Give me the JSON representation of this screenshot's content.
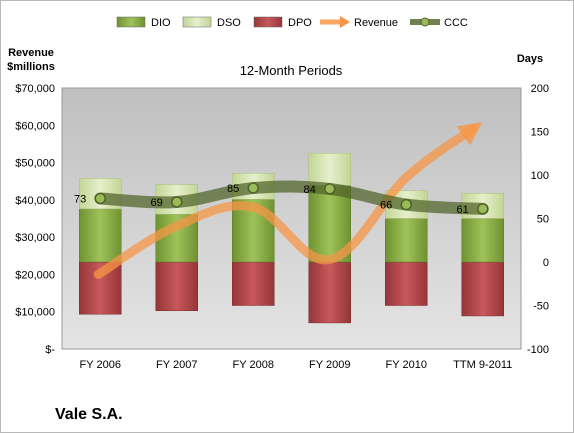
{
  "chart_data": {
    "type": "bar",
    "title": "12-Month Periods",
    "company": "Vale S.A.",
    "left_axis_label": [
      "Revenue",
      "$millions"
    ],
    "right_axis_label": "Days",
    "categories": [
      "FY 2006",
      "FY 2007",
      "FY 2008",
      "FY 2009",
      "FY 2010",
      "TTM 9-2011"
    ],
    "left_ticks": [
      "$-",
      "$10,000",
      "$20,000",
      "$30,000",
      "$40,000",
      "$50,000",
      "$60,000",
      "$70,000"
    ],
    "left_range": [
      0,
      70000
    ],
    "right_ticks": [
      "-100",
      "-50",
      "0",
      "50",
      "100",
      "150",
      "200"
    ],
    "right_range": [
      -100,
      200
    ],
    "legend_position": "top",
    "series": [
      {
        "name": "DIO",
        "axis": "right",
        "color": "#8db04a",
        "values": [
          61,
          55,
          72,
          88,
          50,
          50
        ]
      },
      {
        "name": "DSO",
        "axis": "right",
        "color": "#d6e4ae",
        "values": [
          35,
          34,
          30,
          37,
          32,
          29
        ]
      },
      {
        "name": "DPO",
        "axis": "right",
        "color": "#b9484b",
        "values": [
          -60,
          -56,
          -50,
          -70,
          -50,
          -62
        ]
      },
      {
        "name": "Revenue",
        "axis": "left",
        "color": "#f79646",
        "values": [
          20000,
          33000,
          38000,
          24000,
          46000,
          59000
        ]
      },
      {
        "name": "CCC",
        "axis": "right",
        "color": "#4f6228",
        "values": [
          73,
          69,
          85,
          84,
          66,
          61
        ]
      }
    ],
    "ccc_labels": [
      "73",
      "69",
      "85",
      "84",
      "66",
      "61"
    ],
    "grid": false
  }
}
